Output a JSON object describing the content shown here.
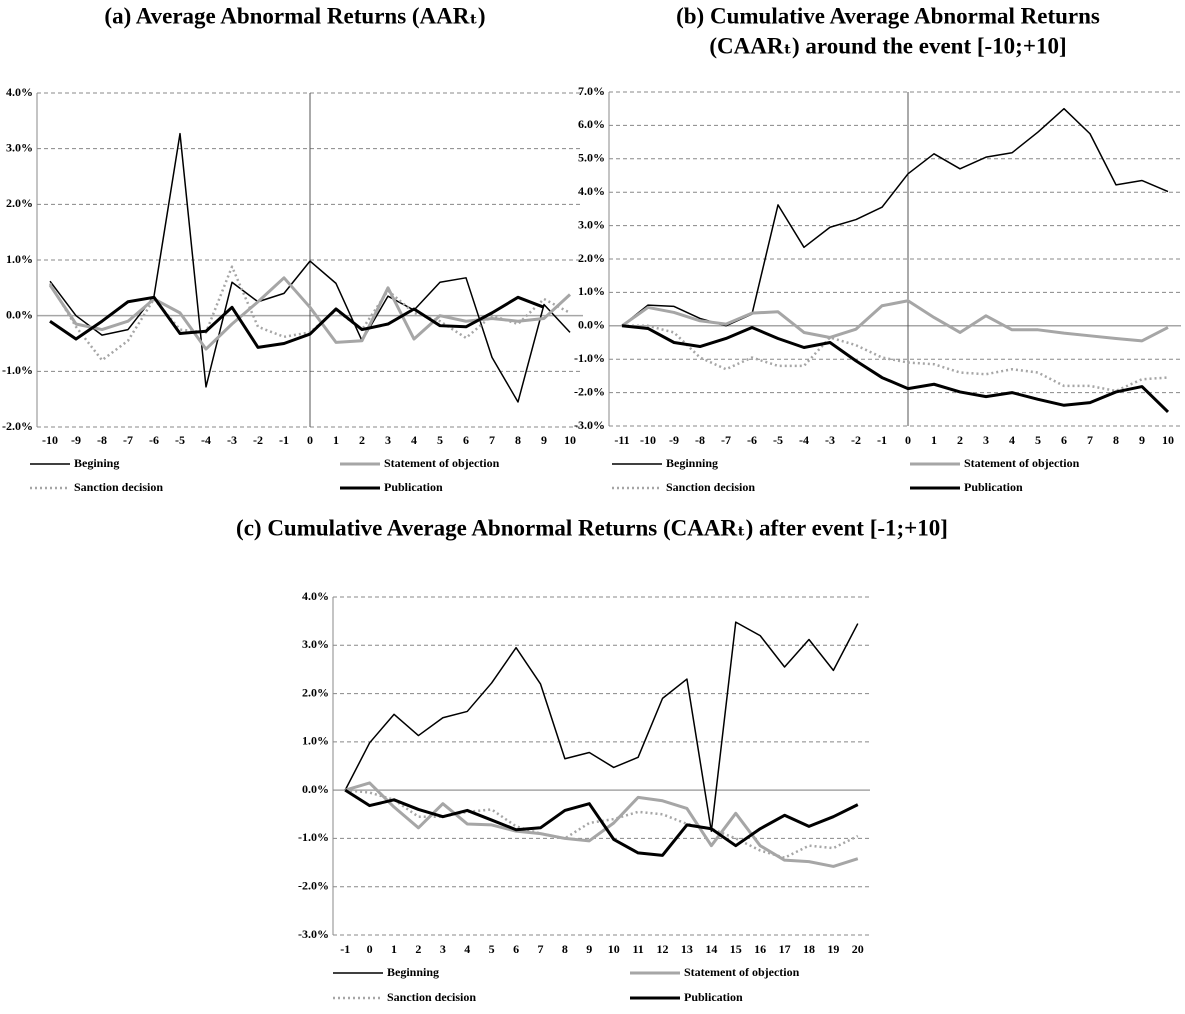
{
  "chart_data": [
    {
      "type": "line",
      "title": "(a)  Average Abnormal Returns (AARₜ)",
      "categories": [
        "-10",
        "-9",
        "-8",
        "-7",
        "-6",
        "-5",
        "-4",
        "-3",
        "-2",
        "-1",
        "0",
        "1",
        "2",
        "3",
        "4",
        "5",
        "6",
        "7",
        "8",
        "9",
        "10"
      ],
      "event_line": "0",
      "ylim": [
        -2,
        4
      ],
      "yticks": [
        {
          "value": -2,
          "label": "-2.0%"
        },
        {
          "value": -1,
          "label": "-1.0%"
        },
        {
          "value": 0,
          "label": "0.0%"
        },
        {
          "value": 1,
          "label": "1.0%"
        },
        {
          "value": 2,
          "label": "2.0%"
        },
        {
          "value": 3,
          "label": "3.0%"
        },
        {
          "value": 4,
          "label": "4.0%"
        }
      ],
      "grid": true,
      "legend": "bottom",
      "series": [
        {
          "name": "Begining",
          "color": "#000000",
          "line_style": "solid",
          "weight": "thin",
          "values": [
            0.62,
            0.0,
            -0.35,
            -0.25,
            0.35,
            3.27,
            -1.28,
            0.6,
            0.25,
            0.4,
            0.98,
            0.58,
            -0.45,
            0.35,
            0.1,
            0.6,
            0.68,
            -0.75,
            -1.55,
            0.2,
            -0.3
          ]
        },
        {
          "name": "Statement of objection",
          "color": "#a6a6a6",
          "line_style": "solid",
          "weight": "thick",
          "values": [
            0.55,
            -0.15,
            -0.25,
            -0.1,
            0.3,
            0.05,
            -0.6,
            -0.15,
            0.25,
            0.68,
            0.15,
            -0.48,
            -0.45,
            0.5,
            -0.42,
            0.0,
            -0.1,
            -0.05,
            -0.1,
            -0.05,
            0.38
          ]
        },
        {
          "name": "Sanction decision",
          "color": "#a6a6a6",
          "line_style": "dotted",
          "weight": "thick",
          "values": [
            0.58,
            -0.2,
            -0.8,
            -0.45,
            0.3,
            -0.25,
            -0.3,
            0.88,
            -0.2,
            -0.38,
            -0.3,
            0.1,
            -0.25,
            0.45,
            0.05,
            -0.1,
            -0.4,
            0.0,
            -0.15,
            0.3,
            0.05
          ]
        },
        {
          "name": "Publication",
          "color": "#000000",
          "line_style": "solid",
          "weight": "thick",
          "values": [
            -0.1,
            -0.42,
            -0.1,
            0.25,
            0.33,
            -0.32,
            -0.28,
            0.15,
            -0.57,
            -0.5,
            -0.33,
            0.12,
            -0.25,
            -0.15,
            0.12,
            -0.18,
            -0.2,
            0.05,
            0.33,
            0.15,
            null
          ]
        }
      ]
    },
    {
      "type": "line",
      "title": [
        "(b) Cumulative Average Abnormal Returns",
        "(CAARₜ) around the event [-10;+10]"
      ],
      "categories": [
        "-11",
        "-10",
        "-9",
        "-8",
        "-7",
        "-6",
        "-5",
        "-4",
        "-3",
        "-2",
        "-1",
        "0",
        "1",
        "2",
        "3",
        "4",
        "5",
        "6",
        "7",
        "8",
        "9",
        "10"
      ],
      "event_line": "0",
      "ylim": [
        -3,
        7
      ],
      "yticks": [
        {
          "value": -3,
          "label": "-3.0%"
        },
        {
          "value": -2,
          "label": "-2.0%"
        },
        {
          "value": -1,
          "label": "-1.0%"
        },
        {
          "value": 0,
          "label": "0.0%"
        },
        {
          "value": 1,
          "label": "1.0%"
        },
        {
          "value": 2,
          "label": "2.0%"
        },
        {
          "value": 3,
          "label": "3.0%"
        },
        {
          "value": 4,
          "label": "4.0%"
        },
        {
          "value": 5,
          "label": "5.0%"
        },
        {
          "value": 6,
          "label": "6.0%"
        },
        {
          "value": 7,
          "label": "7.0%"
        }
      ],
      "grid": true,
      "legend": "bottom",
      "series": [
        {
          "name": "Beginning",
          "color": "#000000",
          "line_style": "solid",
          "weight": "thin",
          "values": [
            0,
            0.62,
            0.58,
            0.22,
            0.0,
            0.35,
            3.62,
            2.35,
            2.95,
            3.18,
            3.55,
            4.55,
            5.15,
            4.7,
            5.05,
            5.18,
            5.8,
            6.5,
            5.75,
            4.22,
            4.35,
            4.02
          ]
        },
        {
          "name": "Statement of objection",
          "color": "#a6a6a6",
          "line_style": "solid",
          "weight": "thick",
          "values": [
            0,
            0.55,
            0.4,
            0.15,
            0.05,
            0.38,
            0.42,
            -0.2,
            -0.35,
            -0.1,
            0.6,
            0.75,
            0.25,
            -0.2,
            0.3,
            -0.12,
            -0.12,
            -0.22,
            -0.3,
            -0.38,
            -0.45,
            -0.05
          ]
        },
        {
          "name": "Sanction decision",
          "color": "#a6a6a6",
          "line_style": "dotted",
          "weight": "thick",
          "values": [
            0,
            0.0,
            -0.2,
            -0.95,
            -1.3,
            -0.95,
            -1.2,
            -1.2,
            -0.35,
            -0.58,
            -0.95,
            -1.1,
            -1.15,
            -1.4,
            -1.45,
            -1.3,
            -1.4,
            -1.8,
            -1.8,
            -1.95,
            -1.6,
            -1.55
          ]
        },
        {
          "name": "Publication",
          "color": "#000000",
          "line_style": "solid",
          "weight": "thick",
          "values": [
            0,
            -0.08,
            -0.5,
            -0.62,
            -0.38,
            -0.05,
            -0.38,
            -0.65,
            -0.5,
            -1.05,
            -1.55,
            -1.88,
            -1.75,
            -1.98,
            -2.12,
            -2.0,
            -2.2,
            -2.38,
            -2.3,
            -1.98,
            -1.82,
            -2.58
          ]
        }
      ]
    },
    {
      "type": "line",
      "title": "(c) Cumulative Average Abnormal Returns (CAARₜ) after event [-1;+10]",
      "categories": [
        "-1",
        "0",
        "1",
        "2",
        "3",
        "4",
        "5",
        "6",
        "7",
        "8",
        "9",
        "10",
        "11",
        "12",
        "13",
        "14",
        "15",
        "16",
        "17",
        "18",
        "19",
        "20"
      ],
      "ylim": [
        -3,
        4
      ],
      "yticks": [
        {
          "value": -3,
          "label": "-3.0%"
        },
        {
          "value": -2,
          "label": "-2.0%"
        },
        {
          "value": -1,
          "label": "-1.0%"
        },
        {
          "value": 0,
          "label": "0.0%"
        },
        {
          "value": 1,
          "label": "1.0%"
        },
        {
          "value": 2,
          "label": "2.0%"
        },
        {
          "value": 3,
          "label": "3.0%"
        },
        {
          "value": 4,
          "label": "4.0%"
        }
      ],
      "grid": true,
      "legend": "bottom",
      "series": [
        {
          "name": "Beginning",
          "color": "#000000",
          "line_style": "solid",
          "weight": "thin",
          "values": [
            0,
            0.98,
            1.57,
            1.13,
            1.5,
            1.63,
            2.22,
            2.95,
            2.2,
            0.65,
            0.78,
            0.47,
            0.68,
            1.9,
            2.3,
            -0.85,
            3.48,
            3.2,
            2.55,
            3.12,
            2.48,
            3.45
          ]
        },
        {
          "name": "Statement of objection",
          "color": "#a6a6a6",
          "line_style": "solid",
          "weight": "thick",
          "values": [
            0,
            0.15,
            -0.35,
            -0.78,
            -0.28,
            -0.7,
            -0.72,
            -0.85,
            -0.9,
            -1.0,
            -1.05,
            -0.68,
            -0.15,
            -0.22,
            -0.38,
            -1.15,
            -0.48,
            -1.15,
            -1.45,
            -1.48,
            -1.58,
            -1.42
          ]
        },
        {
          "name": "Sanction decision",
          "color": "#a6a6a6",
          "line_style": "dotted",
          "weight": "thick",
          "values": [
            0,
            -0.05,
            -0.2,
            -0.55,
            -0.55,
            -0.45,
            -0.4,
            -0.75,
            -0.9,
            -1.0,
            -0.68,
            -0.6,
            -0.45,
            -0.5,
            -0.7,
            -0.8,
            -1.0,
            -1.25,
            -1.4,
            -1.15,
            -1.2,
            -0.95
          ]
        },
        {
          "name": "Publication",
          "color": "#000000",
          "line_style": "solid",
          "weight": "thick",
          "values": [
            0,
            -0.32,
            -0.2,
            -0.4,
            -0.55,
            -0.42,
            -0.62,
            -0.82,
            -0.78,
            -0.42,
            -0.28,
            -1.02,
            -1.3,
            -1.35,
            -0.72,
            -0.8,
            -1.15,
            -0.8,
            -0.52,
            -0.75,
            -0.55,
            -0.3
          ]
        }
      ]
    }
  ]
}
